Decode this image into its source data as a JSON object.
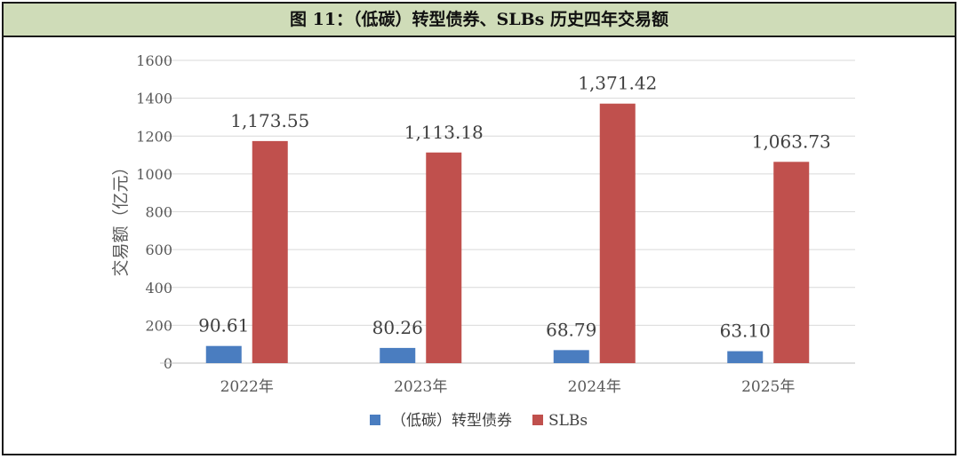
{
  "figure": {
    "title": "图 11：（低碳）转型债券、SLBs 历史四年交易额"
  },
  "chart_data": {
    "type": "bar",
    "title": "图 11：（低碳）转型债券、SLBs 历史四年交易额",
    "xlabel": "",
    "ylabel": "交易额（亿元）",
    "ylim": [
      0,
      1600
    ],
    "yticks": [
      0,
      200,
      400,
      600,
      800,
      1000,
      1200,
      1400,
      1600
    ],
    "grid": true,
    "legend_position": "bottom",
    "categories": [
      "2022年",
      "2023年",
      "2024年",
      "2025年"
    ],
    "series": [
      {
        "name": "（低碳）转型债券",
        "color": "#4a7dc0",
        "values": [
          90.61,
          80.26,
          68.79,
          63.1
        ],
        "labels": [
          "90.61",
          "80.26",
          "68.79",
          "63.10"
        ]
      },
      {
        "name": "SLBs",
        "color": "#c0504d",
        "values": [
          1173.55,
          1113.18,
          1371.42,
          1063.73
        ],
        "labels": [
          "1,173.55",
          "1,113.18",
          "1,371.42",
          "1,063.73"
        ]
      }
    ]
  }
}
